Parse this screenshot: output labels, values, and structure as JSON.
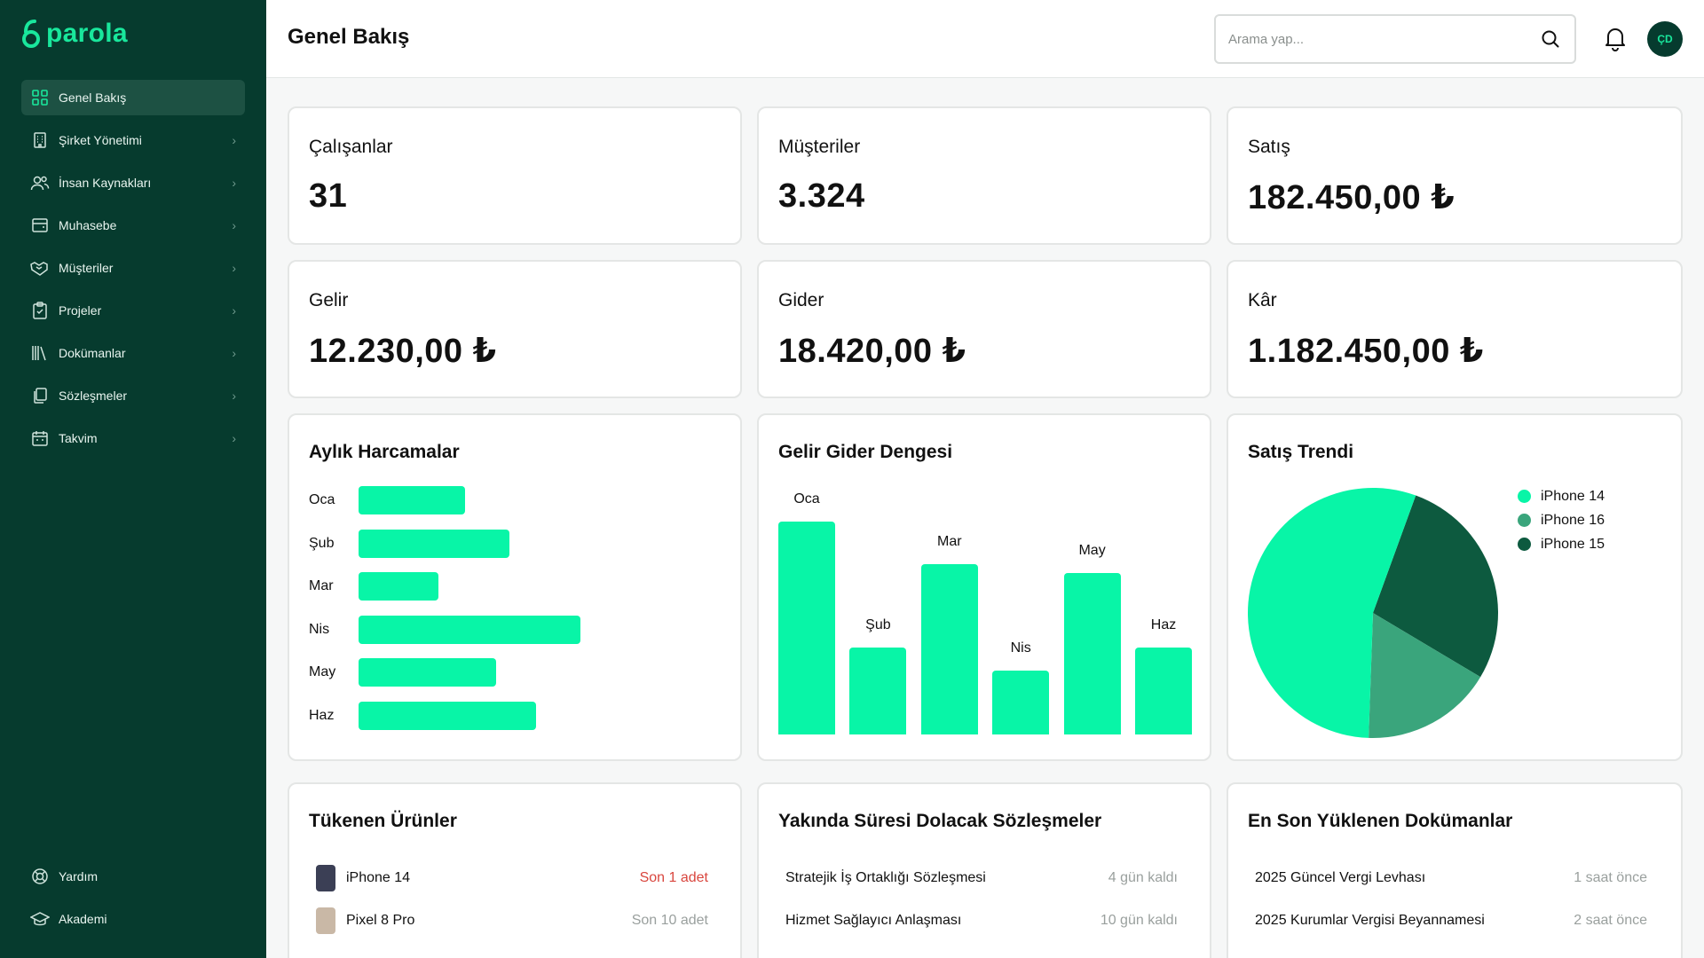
{
  "app": {
    "logo_text": "parola"
  },
  "sidebar": {
    "items": [
      {
        "label": "Genel Bakış",
        "icon": "dashboard-grid-icon"
      },
      {
        "label": "Şirket Yönetimi",
        "icon": "building-icon"
      },
      {
        "label": "İnsan Kaynakları",
        "icon": "users-icon"
      },
      {
        "label": "Muhasebe",
        "icon": "wallet-icon"
      },
      {
        "label": "Müşteriler",
        "icon": "handshake-icon"
      },
      {
        "label": "Projeler",
        "icon": "clipboard-check-icon"
      },
      {
        "label": "Dokümanlar",
        "icon": "books-icon"
      },
      {
        "label": "Sözleşmeler",
        "icon": "documents-copy-icon"
      },
      {
        "label": "Takvim",
        "icon": "calendar-icon"
      }
    ],
    "bottom_items": [
      {
        "label": "Yardım",
        "icon": "lifebuoy-icon"
      },
      {
        "label": "Akademi",
        "icon": "graduation-cap-icon"
      }
    ]
  },
  "header": {
    "title": "Genel Bakış",
    "search_placeholder": "Arama yap...",
    "avatar_initials": "ÇD"
  },
  "stats": [
    {
      "title": "Çalışanlar",
      "value": "31"
    },
    {
      "title": "Müşteriler",
      "value": "3.324"
    },
    {
      "title": "Satış",
      "value": "182.450,00 ₺"
    },
    {
      "title": "Gelir",
      "value": "12.230,00 ₺"
    },
    {
      "title": "Gider",
      "value": "18.420,00 ₺"
    },
    {
      "title": "Kâr",
      "value": "1.182.450,00 ₺"
    }
  ],
  "colors": {
    "accent": "#08f5a7",
    "sidebar_bg": "#063b2e",
    "brand": "#19e79c"
  },
  "chart_data": [
    {
      "type": "bar",
      "orientation": "horizontal",
      "title": "Aylık Harcamalar",
      "categories": [
        "Oca",
        "Şub",
        "Mar",
        "Nis",
        "May",
        "Haz"
      ],
      "values": [
        48,
        68,
        36,
        100,
        62,
        80
      ]
    },
    {
      "type": "bar",
      "title": "Gelir Gider Dengesi",
      "categories": [
        "Oca",
        "Şub",
        "Mar",
        "Nis",
        "May",
        "Haz"
      ],
      "values": [
        100,
        41,
        80,
        30,
        76,
        41
      ]
    },
    {
      "type": "pie",
      "title": "Satış Trendi",
      "labels": [
        "iPhone 14",
        "iPhone 16",
        "iPhone 15"
      ],
      "values": [
        55,
        17,
        28
      ],
      "colors": [
        "#08f5a7",
        "#3aa57c",
        "#0d5a3f"
      ],
      "legend_position": "right"
    }
  ],
  "products": {
    "title": "Tükenen Ürünler",
    "items": [
      {
        "name": "iPhone 14",
        "meta": "Son 1 adet",
        "alert": true,
        "thumb_color": "#3b3f55"
      },
      {
        "name": "Pixel 8 Pro",
        "meta": "Son 10 adet",
        "alert": false,
        "thumb_color": "#c9b8a6"
      }
    ]
  },
  "contracts": {
    "title": "Yakında Süresi Dolacak Sözleşmeler",
    "items": [
      {
        "name": "Stratejik İş Ortaklığı Sözleşmesi",
        "meta": "4 gün kaldı"
      },
      {
        "name": "Hizmet Sağlayıcı Anlaşması",
        "meta": "10 gün kaldı"
      }
    ]
  },
  "documents": {
    "title": "En Son Yüklenen Dokümanlar",
    "items": [
      {
        "name": "2025 Güncel Vergi Levhası",
        "meta": "1 saat önce"
      },
      {
        "name": "2025 Kurumlar Vergisi Beyannamesi",
        "meta": "2 saat önce"
      }
    ]
  }
}
